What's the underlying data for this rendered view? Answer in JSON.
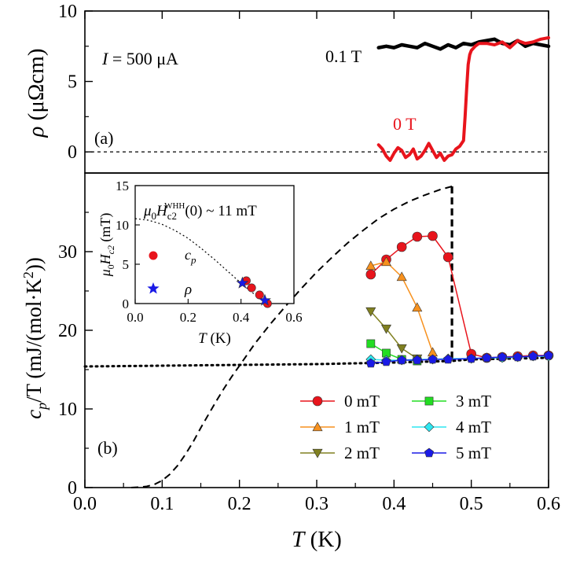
{
  "chart_data": [
    {
      "panel_label": "(a)",
      "type": "line",
      "xlim": [
        0.0,
        0.6
      ],
      "ylim": [
        -1.5,
        10
      ],
      "yticks": [
        "0",
        "5",
        "10"
      ],
      "ylabel_symbol": "ρ",
      "ylabel_unit": "(μΩcm)",
      "annotations": {
        "current": "I = 500 μA",
        "label_01T": "0.1 T",
        "label_0T": "0 T"
      },
      "reference_line": {
        "y": 0,
        "style": "dashed"
      },
      "series": [
        {
          "name": "0.1 T",
          "color": "#000000",
          "x": [
            0.38,
            0.39,
            0.4,
            0.41,
            0.42,
            0.43,
            0.44,
            0.45,
            0.46,
            0.47,
            0.48,
            0.49,
            0.5,
            0.51,
            0.52,
            0.53,
            0.54,
            0.55,
            0.56,
            0.57,
            0.58,
            0.59,
            0.6
          ],
          "y": [
            7.4,
            7.5,
            7.4,
            7.6,
            7.5,
            7.4,
            7.7,
            7.5,
            7.3,
            7.6,
            7.4,
            7.7,
            7.6,
            7.8,
            7.9,
            8.0,
            7.7,
            7.6,
            7.9,
            7.5,
            7.7,
            7.6,
            7.5
          ]
        },
        {
          "name": "0 T",
          "color": "#e8141c",
          "x": [
            0.38,
            0.385,
            0.39,
            0.395,
            0.4,
            0.405,
            0.41,
            0.415,
            0.42,
            0.425,
            0.43,
            0.435,
            0.44,
            0.445,
            0.45,
            0.455,
            0.46,
            0.465,
            0.47,
            0.475,
            0.48,
            0.485,
            0.49,
            0.492,
            0.494,
            0.496,
            0.498,
            0.5,
            0.505,
            0.51,
            0.52,
            0.53,
            0.54,
            0.55,
            0.56,
            0.57,
            0.58,
            0.59,
            0.6
          ],
          "y": [
            0.5,
            0.2,
            -0.3,
            -0.6,
            -0.1,
            0.3,
            0.1,
            -0.4,
            -0.2,
            0.2,
            -0.5,
            -0.3,
            0.1,
            0.6,
            0.1,
            -0.4,
            -0.1,
            -0.6,
            -0.3,
            -0.2,
            0.2,
            0.4,
            0.8,
            2.5,
            4.5,
            6.2,
            6.9,
            7.2,
            7.5,
            7.7,
            7.7,
            7.6,
            7.8,
            7.4,
            7.9,
            7.7,
            7.8,
            8.0,
            8.1
          ]
        }
      ]
    },
    {
      "panel_label": "(b)",
      "type": "line",
      "xlabel": "T",
      "xlabel_unit": "(K)",
      "xticks": [
        "0.0",
        "0.1",
        "0.2",
        "0.3",
        "0.4",
        "0.5",
        "0.6"
      ],
      "xlim": [
        0.0,
        0.6
      ],
      "ylim": [
        0,
        40
      ],
      "yticks": [
        "0",
        "10",
        "20",
        "30"
      ],
      "ylabel_symbol": "c",
      "ylabel_sub": "p",
      "ylabel_rest": "/T (mJ/(mol·K",
      "ylabel_sup": "2",
      "ylabel_close": "))",
      "series": [
        {
          "name": "0 mT",
          "color": "#e8141c",
          "marker": "circle",
          "x": [
            0.37,
            0.39,
            0.41,
            0.43,
            0.45,
            0.47,
            0.5,
            0.52,
            0.54,
            0.56,
            0.58,
            0.6
          ],
          "y": [
            27.1,
            29.0,
            30.6,
            31.9,
            32.0,
            29.3,
            17.0,
            16.5,
            16.6,
            16.7,
            16.8,
            16.8
          ]
        },
        {
          "name": "1 mT",
          "color": "#f7911e",
          "marker": "triangle-up",
          "x": [
            0.37,
            0.39,
            0.41,
            0.43,
            0.45
          ],
          "y": [
            28.2,
            28.7,
            26.8,
            22.9,
            17.2
          ]
        },
        {
          "name": "2 mT",
          "color": "#808020",
          "marker": "triangle-down",
          "x": [
            0.37,
            0.39,
            0.41,
            0.43
          ],
          "y": [
            22.4,
            20.2,
            17.7,
            16.4
          ]
        },
        {
          "name": "3 mT",
          "color": "#22dd22",
          "marker": "square",
          "x": [
            0.37,
            0.39,
            0.41,
            0.43
          ],
          "y": [
            18.3,
            17.1,
            16.3,
            16.1
          ]
        },
        {
          "name": "4 mT",
          "color": "#2ee6f0",
          "marker": "diamond",
          "x": [
            0.37,
            0.39,
            0.41,
            0.43,
            0.45,
            0.47,
            0.5,
            0.52,
            0.54,
            0.56,
            0.58,
            0.6
          ],
          "y": [
            16.3,
            16.2,
            16.2,
            16.3,
            16.3,
            16.4,
            16.4,
            16.5,
            16.5,
            16.6,
            16.7,
            16.7
          ]
        },
        {
          "name": "5 mT",
          "color": "#1a1ae6",
          "marker": "pentagon",
          "x": [
            0.37,
            0.39,
            0.41,
            0.43,
            0.45,
            0.47,
            0.5,
            0.52,
            0.54,
            0.56,
            0.58,
            0.6
          ],
          "y": [
            15.8,
            16.0,
            16.2,
            16.2,
            16.3,
            16.3,
            16.4,
            16.5,
            16.6,
            16.6,
            16.7,
            16.8
          ]
        }
      ],
      "model_curves": {
        "dashed_x": [
          0.06,
          0.07,
          0.08,
          0.09,
          0.1,
          0.11,
          0.12,
          0.13,
          0.14,
          0.15,
          0.16,
          0.17,
          0.18,
          0.19,
          0.2,
          0.22,
          0.24,
          0.26,
          0.28,
          0.3,
          0.32,
          0.34,
          0.36,
          0.38,
          0.4,
          0.42,
          0.44,
          0.46,
          0.475
        ],
        "dashed_y": [
          0.0,
          0.05,
          0.15,
          0.4,
          0.9,
          1.7,
          2.8,
          4.2,
          5.8,
          7.6,
          9.3,
          11.0,
          12.6,
          14.1,
          15.5,
          18.3,
          20.8,
          23.1,
          25.3,
          27.4,
          29.3,
          31.1,
          32.7,
          34.2,
          35.4,
          36.4,
          37.2,
          37.9,
          38.3
        ],
        "jump_x": 0.475,
        "jump_y_top": 38.3,
        "jump_y_bottom": 16.3,
        "normal_state_x": [
          0.0,
          0.1,
          0.2,
          0.3,
          0.4,
          0.475,
          0.5,
          0.6
        ],
        "normal_state_y": [
          15.4,
          15.5,
          15.6,
          15.7,
          15.9,
          16.1,
          16.3,
          16.5
        ]
      }
    },
    {
      "panel_label": "inset",
      "type": "scatter",
      "xlabel": "T",
      "xlabel_unit": "(K)",
      "xticks": [
        "0.0",
        "0.2",
        "0.4",
        "0.6"
      ],
      "xlim": [
        0.0,
        0.6
      ],
      "ylim": [
        0,
        15
      ],
      "yticks": [
        "0",
        "5",
        "10",
        "15"
      ],
      "ylabel_mu": "μ",
      "ylabel_sub0": "0",
      "ylabel_H": "H",
      "ylabel_subc2": "c2",
      "ylabel_unit": "(mT)",
      "annotation": {
        "prefix": "μ",
        "sub0": "0",
        "H": "H",
        "subc2": "c2",
        "sup": "WHH",
        "suffix": "(0) ~ 11 mT"
      },
      "legend": {
        "cp_symbol": "c",
        "cp_sub": "p",
        "rho": "ρ"
      },
      "series": [
        {
          "name": "cp",
          "color": "#e8141c",
          "marker": "circle",
          "x": [
            0.42,
            0.44,
            0.47,
            0.5
          ],
          "y": [
            2.9,
            2.0,
            1.1,
            0.0
          ]
        },
        {
          "name": "rho",
          "color": "#1a1ae6",
          "marker": "star",
          "x": [
            0.405,
            0.49
          ],
          "y": [
            2.6,
            0.4
          ]
        }
      ],
      "whh_curve": {
        "x": [
          0.0,
          0.05,
          0.1,
          0.15,
          0.2,
          0.25,
          0.3,
          0.35,
          0.4,
          0.45,
          0.5
        ],
        "y": [
          10.8,
          10.6,
          10.1,
          9.3,
          8.3,
          7.0,
          5.6,
          4.1,
          2.6,
          1.2,
          0.0
        ]
      }
    }
  ]
}
